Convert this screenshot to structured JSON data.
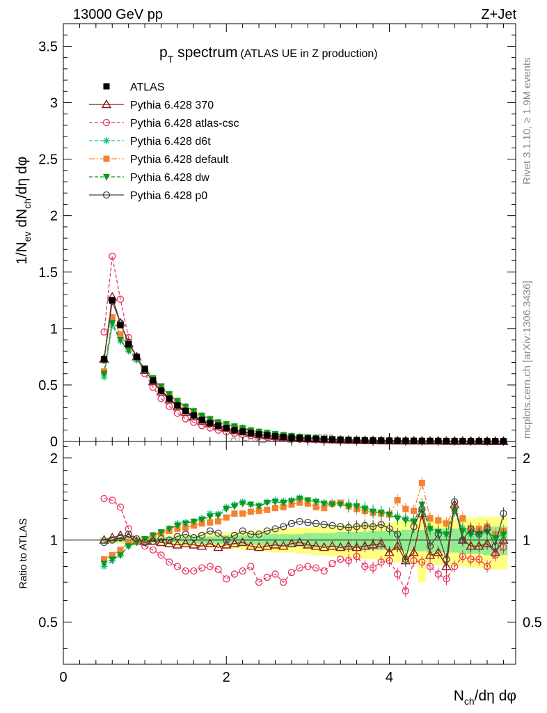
{
  "header": {
    "energy": "13000 GeV pp",
    "process": "Z+Jet"
  },
  "side_labels": {
    "rivet": "Rivet 3.1.10, ≥ 1.9M events",
    "mcplots": "mcplots.cern.ch [arXiv:1306.3436]"
  },
  "chart_data": [
    {
      "panel": "main",
      "type": "line",
      "title": "pT spectrum (ATLAS UE in Z production)",
      "title_main": "p",
      "title_sub": "T",
      "title_rest": " spectrum",
      "title_paren": "(ATLAS UE in Z production)",
      "watermark": "ATLAS_2019_I1736531",
      "ylabel": "1/Nev dNch/dη dφ",
      "ylim": [
        0,
        3.7
      ],
      "xlim": [
        0,
        5.55
      ],
      "yticks": [
        "0",
        "0.5",
        "1",
        "1.5",
        "2",
        "2.5",
        "3",
        "3.5"
      ],
      "x": [
        0.5,
        0.6,
        0.7,
        0.8,
        0.9,
        1.0,
        1.1,
        1.2,
        1.3,
        1.4,
        1.5,
        1.6,
        1.7,
        1.8,
        1.9,
        2.0,
        2.1,
        2.2,
        2.3,
        2.4,
        2.5,
        2.6,
        2.7,
        2.8,
        2.9,
        3.0,
        3.1,
        3.2,
        3.3,
        3.4,
        3.5,
        3.6,
        3.7,
        3.8,
        3.9,
        4.0,
        4.1,
        4.2,
        4.3,
        4.4,
        4.5,
        4.6,
        4.7,
        4.8,
        4.9,
        5.0,
        5.1,
        5.2,
        5.3,
        5.4
      ],
      "series": [
        {
          "name": "ATLAS",
          "color": "#000000",
          "marker": "square-filled",
          "values": [
            0.73,
            1.25,
            1.03,
            0.86,
            0.75,
            0.64,
            0.54,
            0.45,
            0.38,
            0.32,
            0.27,
            0.23,
            0.19,
            0.165,
            0.14,
            0.12,
            0.1,
            0.088,
            0.075,
            0.064,
            0.055,
            0.047,
            0.04,
            0.034,
            0.029,
            0.025,
            0.022,
            0.019,
            0.016,
            0.014,
            0.012,
            0.011,
            0.009,
            0.008,
            0.007,
            0.006,
            0.006,
            0.005,
            0.005,
            0.004,
            0.004,
            0.004,
            0.003,
            0.003,
            0.003,
            0.003,
            0.003,
            0.002,
            0.002,
            0.002
          ]
        },
        {
          "name": "Pythia 6.428 370",
          "color": "#8b1a1a",
          "marker": "triangle-open",
          "values": [
            0.73,
            1.28,
            1.05,
            0.87,
            0.75,
            0.63,
            0.53,
            0.44,
            0.37,
            0.31,
            0.26,
            0.22,
            0.18,
            0.16,
            0.13,
            0.115,
            0.098,
            0.085,
            0.071,
            0.06,
            0.052,
            0.045,
            0.038,
            0.033,
            0.028,
            0.024,
            0.021,
            0.018,
            0.015,
            0.013,
            0.011,
            0.01,
            0.009,
            0.008,
            0.007,
            0.006,
            0.005,
            0.005,
            0.005,
            0.004,
            0.004,
            0.004,
            0.003,
            0.003,
            0.003,
            0.003,
            0.003,
            0.002,
            0.002,
            0.002
          ]
        },
        {
          "name": "Pythia 6.428 atlas-csc",
          "color": "#e8335c",
          "marker": "circle-open",
          "values": [
            0.97,
            1.64,
            1.26,
            0.92,
            0.74,
            0.6,
            0.48,
            0.38,
            0.31,
            0.25,
            0.2,
            0.17,
            0.14,
            0.12,
            0.1,
            0.085,
            0.072,
            0.062,
            0.051,
            0.043,
            0.037,
            0.031,
            0.027,
            0.023,
            0.019,
            0.016,
            0.014,
            0.012,
            0.01,
            0.009,
            0.008,
            0.007,
            0.006,
            0.005,
            0.005,
            0.004,
            0.004,
            0.004,
            0.003,
            0.003,
            0.003,
            0.003,
            0.002,
            0.002,
            0.002,
            0.002,
            0.002,
            0.002,
            0.002,
            0.002
          ]
        },
        {
          "name": "Pythia 6.428 d6t",
          "color": "#1fbf8f",
          "marker": "star",
          "values": [
            0.57,
            1.03,
            0.89,
            0.8,
            0.72,
            0.64,
            0.56,
            0.48,
            0.42,
            0.36,
            0.31,
            0.27,
            0.23,
            0.2,
            0.17,
            0.155,
            0.135,
            0.12,
            0.1,
            0.087,
            0.076,
            0.066,
            0.057,
            0.049,
            0.042,
            0.036,
            0.031,
            0.026,
            0.022,
            0.019,
            0.017,
            0.015,
            0.013,
            0.011,
            0.01,
            0.009,
            0.008,
            0.007,
            0.006,
            0.006,
            0.005,
            0.005,
            0.004,
            0.004,
            0.004,
            0.003,
            0.003,
            0.003,
            0.003,
            0.003
          ]
        },
        {
          "name": "Pythia 6.428 default",
          "color": "#f58231",
          "marker": "square-filled",
          "values": [
            0.62,
            1.1,
            0.95,
            0.84,
            0.74,
            0.64,
            0.56,
            0.48,
            0.41,
            0.35,
            0.3,
            0.26,
            0.22,
            0.19,
            0.165,
            0.145,
            0.125,
            0.11,
            0.095,
            0.082,
            0.071,
            0.062,
            0.053,
            0.046,
            0.04,
            0.034,
            0.029,
            0.025,
            0.022,
            0.019,
            0.016,
            0.014,
            0.012,
            0.011,
            0.01,
            0.009,
            0.008,
            0.007,
            0.006,
            0.006,
            0.005,
            0.005,
            0.004,
            0.004,
            0.004,
            0.003,
            0.003,
            0.003,
            0.003,
            0.003
          ]
        },
        {
          "name": "Pythia 6.428 dw",
          "color": "#0a9a1a",
          "marker": "triangle-down-filled",
          "values": [
            0.6,
            1.05,
            0.9,
            0.81,
            0.73,
            0.65,
            0.56,
            0.49,
            0.42,
            0.36,
            0.31,
            0.27,
            0.23,
            0.2,
            0.17,
            0.155,
            0.135,
            0.12,
            0.1,
            0.088,
            0.077,
            0.067,
            0.058,
            0.05,
            0.043,
            0.037,
            0.032,
            0.027,
            0.023,
            0.02,
            0.017,
            0.015,
            0.013,
            0.011,
            0.01,
            0.009,
            0.008,
            0.007,
            0.006,
            0.006,
            0.005,
            0.005,
            0.004,
            0.004,
            0.004,
            0.003,
            0.003,
            0.003,
            0.003,
            0.003
          ]
        },
        {
          "name": "Pythia 6.428 p0",
          "color": "#444444",
          "marker": "circle-open",
          "values": [
            0.72,
            1.24,
            1.05,
            0.88,
            0.75,
            0.63,
            0.53,
            0.45,
            0.38,
            0.32,
            0.27,
            0.23,
            0.19,
            0.165,
            0.14,
            0.12,
            0.1,
            0.089,
            0.076,
            0.065,
            0.056,
            0.048,
            0.041,
            0.035,
            0.031,
            0.027,
            0.023,
            0.02,
            0.017,
            0.015,
            0.013,
            0.011,
            0.01,
            0.009,
            0.008,
            0.007,
            0.006,
            0.005,
            0.005,
            0.004,
            0.004,
            0.004,
            0.003,
            0.003,
            0.003,
            0.003,
            0.003,
            0.002,
            0.002,
            0.002
          ]
        }
      ]
    },
    {
      "panel": "ratio",
      "type": "line",
      "ylabel": "Ratio to ATLAS",
      "ylim": [
        0.35,
        2.3
      ],
      "xlim": [
        0,
        5.55
      ],
      "yticks": [
        "0.5",
        "1",
        "2"
      ],
      "xticks": [
        "0",
        "2",
        "4"
      ],
      "xlabel": "Nch/dη dφ",
      "x": [
        0.5,
        0.6,
        0.7,
        0.8,
        0.9,
        1.0,
        1.1,
        1.2,
        1.3,
        1.4,
        1.5,
        1.6,
        1.7,
        1.8,
        1.9,
        2.0,
        2.1,
        2.2,
        2.3,
        2.4,
        2.5,
        2.6,
        2.7,
        2.8,
        2.9,
        3.0,
        3.1,
        3.2,
        3.3,
        3.4,
        3.5,
        3.6,
        3.7,
        3.8,
        3.9,
        4.0,
        4.1,
        4.2,
        4.3,
        4.4,
        4.5,
        4.6,
        4.7,
        4.8,
        4.9,
        5.0,
        5.1,
        5.2,
        5.3,
        5.4
      ],
      "band_stat": [
        0.02,
        0.02,
        0.02,
        0.02,
        0.02,
        0.02,
        0.02,
        0.02,
        0.02,
        0.02,
        0.03,
        0.03,
        0.03,
        0.03,
        0.03,
        0.04,
        0.04,
        0.04,
        0.04,
        0.04,
        0.05,
        0.05,
        0.05,
        0.05,
        0.05,
        0.06,
        0.06,
        0.06,
        0.06,
        0.07,
        0.07,
        0.07,
        0.07,
        0.08,
        0.08,
        0.08,
        0.08,
        0.09,
        0.09,
        0.09,
        0.1,
        0.1,
        0.1,
        0.1,
        0.11,
        0.11,
        0.11,
        0.12,
        0.12,
        0.12
      ],
      "band_tot": [
        0.02,
        0.03,
        0.03,
        0.03,
        0.03,
        0.03,
        0.04,
        0.04,
        0.04,
        0.05,
        0.05,
        0.05,
        0.06,
        0.06,
        0.06,
        0.07,
        0.07,
        0.08,
        0.08,
        0.09,
        0.09,
        0.1,
        0.1,
        0.1,
        0.11,
        0.11,
        0.12,
        0.12,
        0.13,
        0.13,
        0.14,
        0.14,
        0.15,
        0.15,
        0.16,
        0.16,
        0.17,
        0.17,
        0.18,
        0.3,
        0.18,
        0.19,
        0.19,
        0.2,
        0.2,
        0.21,
        0.21,
        0.22,
        0.22,
        0.22
      ],
      "series": [
        {
          "name": "Pythia 6.428 370",
          "color": "#8b1a1a",
          "marker": "triangle-open",
          "values": [
            1.0,
            1.02,
            1.04,
            1.03,
            0.99,
            0.99,
            0.99,
            0.98,
            0.97,
            0.96,
            0.97,
            0.96,
            0.95,
            0.97,
            0.94,
            0.96,
            0.97,
            0.98,
            0.95,
            0.94,
            0.95,
            0.96,
            0.95,
            0.97,
            0.98,
            0.96,
            0.95,
            0.94,
            0.95,
            0.94,
            0.95,
            0.94,
            0.95,
            0.96,
            0.97,
            0.9,
            0.95,
            0.84,
            0.9,
            1.25,
            0.88,
            0.9,
            0.8,
            1.35,
            1.0,
            0.95,
            0.95,
            0.97,
            0.9,
            1.0
          ]
        },
        {
          "name": "Pythia 6.428 atlas-csc",
          "color": "#e8335c",
          "marker": "circle-open",
          "values": [
            1.42,
            1.4,
            1.32,
            1.1,
            0.99,
            0.95,
            0.92,
            0.88,
            0.83,
            0.8,
            0.77,
            0.77,
            0.79,
            0.8,
            0.78,
            0.72,
            0.75,
            0.77,
            0.8,
            0.7,
            0.73,
            0.75,
            0.7,
            0.76,
            0.79,
            0.8,
            0.79,
            0.77,
            0.82,
            0.85,
            0.84,
            0.87,
            0.8,
            0.79,
            0.83,
            0.84,
            0.75,
            0.65,
            0.84,
            0.83,
            0.8,
            0.75,
            0.72,
            0.8,
            0.87,
            0.85,
            0.85,
            0.8,
            0.88,
            0.94
          ]
        },
        {
          "name": "Pythia 6.428 d6t",
          "color": "#1fbf8f",
          "marker": "star",
          "values": [
            0.8,
            0.84,
            0.88,
            0.95,
            0.98,
            1.0,
            1.04,
            1.06,
            1.1,
            1.15,
            1.16,
            1.17,
            1.2,
            1.25,
            1.25,
            1.32,
            1.35,
            1.38,
            1.35,
            1.34,
            1.38,
            1.4,
            1.39,
            1.4,
            1.43,
            1.4,
            1.39,
            1.37,
            1.37,
            1.36,
            1.35,
            1.34,
            1.32,
            1.28,
            1.27,
            1.25,
            1.22,
            1.2,
            1.18,
            1.3,
            1.1,
            1.08,
            1.05,
            1.3,
            1.1,
            1.05,
            1.05,
            1.08,
            1.02,
            1.05
          ]
        },
        {
          "name": "Pythia 6.428 default",
          "color": "#f58231",
          "marker": "square-filled",
          "values": [
            0.85,
            0.88,
            0.92,
            0.98,
            0.99,
            1.0,
            1.04,
            1.06,
            1.08,
            1.1,
            1.11,
            1.13,
            1.15,
            1.16,
            1.17,
            1.21,
            1.25,
            1.25,
            1.27,
            1.28,
            1.29,
            1.31,
            1.32,
            1.35,
            1.37,
            1.36,
            1.32,
            1.31,
            1.36,
            1.37,
            1.33,
            1.3,
            1.28,
            1.26,
            1.25,
            1.24,
            1.4,
            1.3,
            1.28,
            1.62,
            1.2,
            1.18,
            1.15,
            1.3,
            1.2,
            1.1,
            1.1,
            1.12,
            1.05,
            1.08
          ]
        },
        {
          "name": "Pythia 6.428 dw",
          "color": "#0a9a1a",
          "marker": "triangle-down-filled",
          "values": [
            0.82,
            0.85,
            0.88,
            0.95,
            0.98,
            1.01,
            1.04,
            1.07,
            1.1,
            1.13,
            1.15,
            1.17,
            1.19,
            1.22,
            1.23,
            1.3,
            1.33,
            1.36,
            1.35,
            1.33,
            1.37,
            1.38,
            1.37,
            1.39,
            1.42,
            1.4,
            1.38,
            1.36,
            1.35,
            1.35,
            1.33,
            1.33,
            1.3,
            1.27,
            1.26,
            1.24,
            1.2,
            1.18,
            1.17,
            1.35,
            1.1,
            1.07,
            1.05,
            1.28,
            1.08,
            1.05,
            1.05,
            1.07,
            1.02,
            1.05
          ]
        },
        {
          "name": "Pythia 6.428 p0",
          "color": "#444444",
          "marker": "circle-open",
          "values": [
            0.98,
            1.0,
            1.02,
            1.05,
            1.01,
            0.98,
            0.99,
            1.01,
            1.0,
            1.03,
            1.05,
            1.02,
            1.04,
            1.08,
            1.06,
            1.0,
            1.04,
            1.08,
            1.05,
            1.05,
            1.08,
            1.1,
            1.12,
            1.15,
            1.17,
            1.16,
            1.15,
            1.14,
            1.13,
            1.12,
            1.11,
            1.12,
            1.13,
            1.12,
            1.14,
            1.1,
            1.05,
            0.85,
            1.12,
            1.3,
            0.95,
            1.05,
            0.85,
            1.38,
            1.0,
            1.1,
            1.05,
            1.1,
            0.95,
            1.25
          ]
        }
      ]
    }
  ]
}
